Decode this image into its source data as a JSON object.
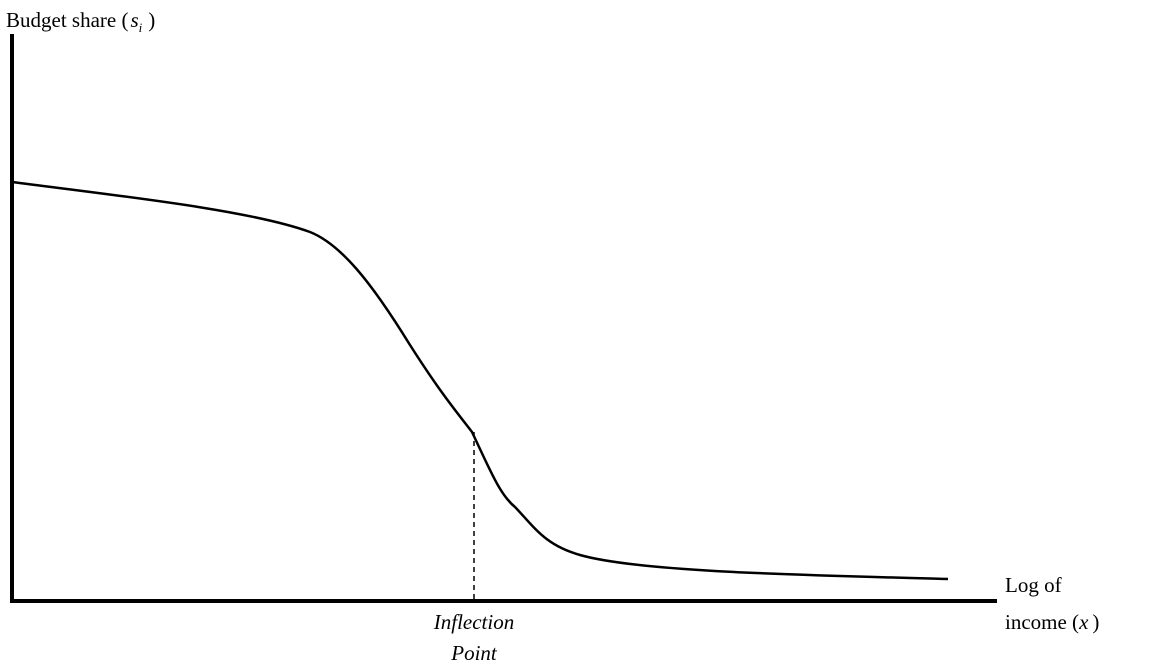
{
  "y_axis_label": {
    "prefix": "Budget share (",
    "variable": "s",
    "subscript": "i",
    "suffix": ")"
  },
  "x_axis_label": {
    "line1": "Log of",
    "prefix": "income (",
    "variable": "x",
    "suffix": ")"
  },
  "annotation": {
    "line1": "Inflection",
    "line2": "Point"
  }
}
